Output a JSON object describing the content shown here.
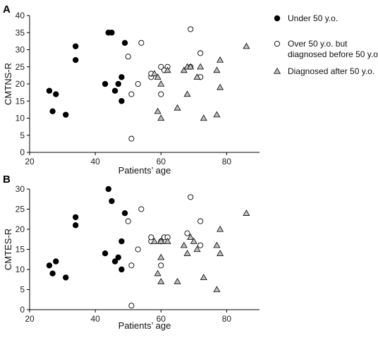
{
  "chart_data": [
    {
      "panel": "A",
      "type": "scatter",
      "xlabel": "Patients’ age",
      "ylabel": "CMTNS-R",
      "xlim": [
        20,
        90
      ],
      "ylim": [
        0,
        40
      ],
      "xticks": [
        "20",
        "40",
        "60",
        "80"
      ],
      "yticks": [
        "0",
        "5",
        "10",
        "15",
        "20",
        "25",
        "30",
        "35",
        "40"
      ],
      "series": [
        {
          "name": "Under 50 y.o.",
          "marker": "filled-circle",
          "points": [
            [
              26,
              18
            ],
            [
              27,
              12
            ],
            [
              28,
              17
            ],
            [
              31,
              11
            ],
            [
              34,
              31
            ],
            [
              34,
              27
            ],
            [
              43,
              20
            ],
            [
              44,
              35
            ],
            [
              45,
              35
            ],
            [
              46,
              18
            ],
            [
              47,
              20
            ],
            [
              48,
              15
            ],
            [
              48,
              22
            ],
            [
              49,
              32
            ]
          ]
        },
        {
          "name": "Over 50 y.o. but diagnosed before 50 y.o.",
          "marker": "open-circle",
          "points": [
            [
              50,
              28
            ],
            [
              51,
              17
            ],
            [
              51,
              4
            ],
            [
              53,
              20
            ],
            [
              54,
              32
            ],
            [
              57,
              22
            ],
            [
              57,
              23
            ],
            [
              60,
              17
            ],
            [
              60,
              25
            ],
            [
              61,
              24
            ],
            [
              62,
              25
            ],
            [
              69,
              25
            ],
            [
              69,
              36
            ],
            [
              72,
              29
            ],
            [
              72,
              22
            ]
          ]
        },
        {
          "name": "Diagnosed after 50 y.o.",
          "marker": "triangle",
          "points": [
            [
              58,
              23
            ],
            [
              59,
              12
            ],
            [
              59,
              22
            ],
            [
              60,
              20
            ],
            [
              60,
              10
            ],
            [
              62,
              24
            ],
            [
              65,
              13
            ],
            [
              67,
              24
            ],
            [
              68,
              17
            ],
            [
              68,
              25
            ],
            [
              69,
              25
            ],
            [
              71,
              22
            ],
            [
              72,
              25
            ],
            [
              73,
              10
            ],
            [
              77,
              11
            ],
            [
              77,
              24
            ],
            [
              78,
              27
            ],
            [
              78,
              19
            ],
            [
              86,
              31
            ]
          ]
        }
      ]
    },
    {
      "panel": "B",
      "type": "scatter",
      "xlabel": "Patients’ age",
      "ylabel": "CMTES-R",
      "xlim": [
        20,
        90
      ],
      "ylim": [
        0,
        30
      ],
      "xticks": [
        "20",
        "40",
        "60",
        "80"
      ],
      "yticks": [
        "0",
        "5",
        "10",
        "15",
        "20",
        "25",
        "30"
      ],
      "series": [
        {
          "name": "Under 50 y.o.",
          "marker": "filled-circle",
          "points": [
            [
              26,
              11
            ],
            [
              27,
              9
            ],
            [
              28,
              12
            ],
            [
              31,
              8
            ],
            [
              34,
              23
            ],
            [
              34,
              21
            ],
            [
              43,
              14
            ],
            [
              44,
              30
            ],
            [
              45,
              27
            ],
            [
              46,
              12
            ],
            [
              47,
              13
            ],
            [
              48,
              10
            ],
            [
              48,
              17
            ],
            [
              49,
              24
            ]
          ]
        },
        {
          "name": "Over 50 y.o. but diagnosed before 50 y.o.",
          "marker": "open-circle",
          "points": [
            [
              50,
              22
            ],
            [
              51,
              11
            ],
            [
              51,
              1
            ],
            [
              53,
              15
            ],
            [
              54,
              25
            ],
            [
              57,
              17
            ],
            [
              57,
              18
            ],
            [
              60,
              11
            ],
            [
              60,
              17
            ],
            [
              61,
              18
            ],
            [
              62,
              18
            ],
            [
              68,
              19
            ],
            [
              69,
              28
            ],
            [
              72,
              22
            ],
            [
              72,
              16
            ]
          ]
        },
        {
          "name": "Diagnosed after 50 y.o.",
          "marker": "triangle",
          "points": [
            [
              58,
              17
            ],
            [
              59,
              9
            ],
            [
              60,
              13
            ],
            [
              60,
              17
            ],
            [
              60,
              7
            ],
            [
              62,
              17
            ],
            [
              65,
              7
            ],
            [
              67,
              16
            ],
            [
              68,
              14
            ],
            [
              69,
              18
            ],
            [
              70,
              17
            ],
            [
              71,
              15
            ],
            [
              73,
              8
            ],
            [
              77,
              5
            ],
            [
              77,
              16
            ],
            [
              78,
              20
            ],
            [
              78,
              14
            ],
            [
              86,
              24
            ]
          ]
        }
      ]
    }
  ],
  "legend": [
    {
      "marker": "filled-circle",
      "lines": [
        "Under 50 y.o."
      ]
    },
    {
      "marker": "open-circle",
      "lines": [
        "Over 50 y.o. but",
        "diagnosed before 50 y.o."
      ]
    },
    {
      "marker": "triangle",
      "lines": [
        "Diagnosed after 50 y.o."
      ]
    }
  ],
  "colors": {
    "filled": "#000000",
    "open_fill": "#ffffff",
    "triangle_fill": "#bfbfbf",
    "stroke": "#000000",
    "axis": "#000000"
  }
}
